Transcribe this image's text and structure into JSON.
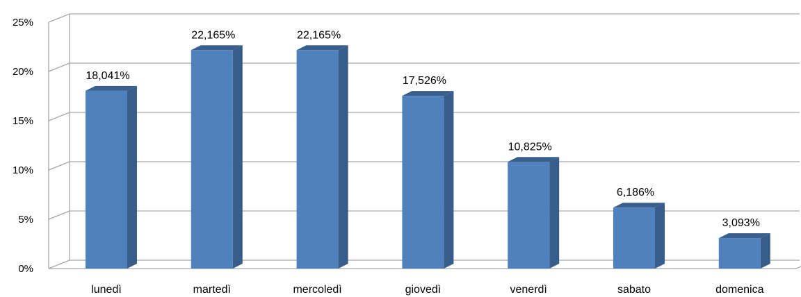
{
  "chart_data": {
    "type": "bar",
    "style": "3d-column",
    "categories": [
      "lunedì",
      "martedì",
      "mercoledì",
      "giovedì",
      "venerdì",
      "sabato",
      "domenica"
    ],
    "values": [
      18.041,
      22.165,
      22.165,
      17.526,
      10.825,
      6.186,
      3.093
    ],
    "data_labels": [
      "18,041%",
      "22,165%",
      "22,165%",
      "17,526%",
      "10,825%",
      "6,186%",
      "3,093%"
    ],
    "y_ticks": [
      0,
      5,
      10,
      15,
      20,
      25
    ],
    "y_tick_labels": [
      "0%",
      "5%",
      "10%",
      "15%",
      "20%",
      "25%"
    ],
    "ylim": [
      0,
      25
    ],
    "grid": true,
    "legend": "none",
    "colors": {
      "bar_front": "#4f81bd",
      "bar_side": "#385d8a",
      "bar_top": "#3a5f8c",
      "grid": "#a6a6a6",
      "text": "#000000"
    }
  }
}
